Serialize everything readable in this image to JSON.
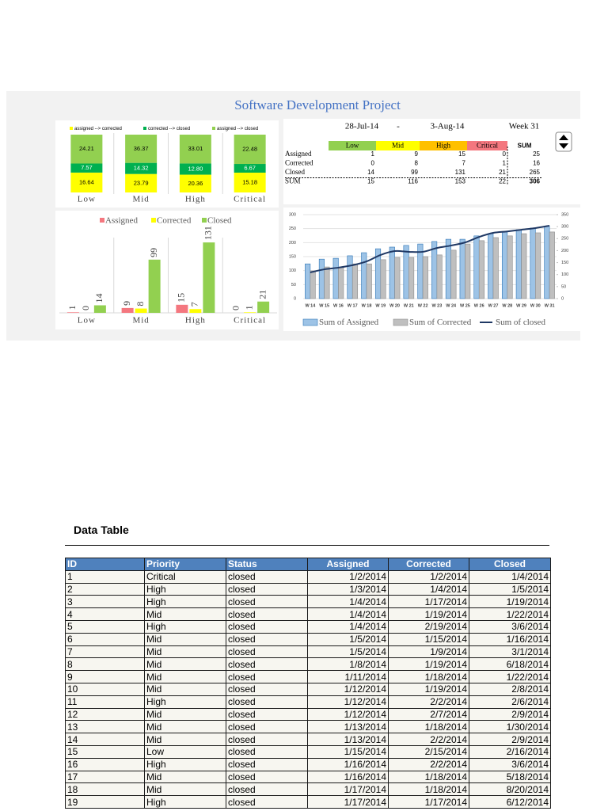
{
  "title": "Software Development Project",
  "chart_data": [
    {
      "type": "stacked_bar_100",
      "categories": [
        "Low",
        "Mid",
        "High",
        "Critical"
      ],
      "series": [
        {
          "name": "assigned --> corrected",
          "color": "#ffff00",
          "values": [
            16.64,
            23.79,
            20.36,
            15.18
          ]
        },
        {
          "name": "corrected --> closed",
          "color": "#00b050",
          "values": [
            7.57,
            14.32,
            12.8,
            6.67
          ],
          "value_labels": [
            "7.57",
            "14.32",
            "12.80",
            "6.67"
          ]
        },
        {
          "name": "assigned --> closed",
          "color": "#92d050",
          "values": [
            24.21,
            36.37,
            33.01,
            22.48
          ]
        }
      ]
    },
    {
      "type": "bar",
      "categories": [
        "Low",
        "Mid",
        "High",
        "Critical"
      ],
      "series": [
        {
          "name": "Assigned",
          "color": "#f4777f",
          "values": [
            1,
            9,
            15,
            0
          ]
        },
        {
          "name": "Corrected",
          "color": "#ffff00",
          "values": [
            0,
            8,
            7,
            1
          ]
        },
        {
          "name": "Closed",
          "color": "#92d050",
          "values": [
            14,
            99,
            131,
            21
          ]
        }
      ],
      "ylim": [
        0,
        140
      ]
    },
    {
      "type": "combo",
      "categories": [
        "W 14",
        "W 15",
        "W 16",
        "W 17",
        "W 18",
        "W 19",
        "W 20",
        "W 21",
        "W 22",
        "W 23",
        "W 24",
        "W 25",
        "W 26",
        "W 27",
        "W 28",
        "W 29",
        "W 30",
        "W 31"
      ],
      "series": [
        {
          "name": "Sum of Assigned",
          "type": "bar",
          "color": "#9dc3e6",
          "values": [
            124,
            141,
            144,
            153,
            164,
            178,
            184,
            190,
            195,
            204,
            212,
            212,
            224,
            232,
            240,
            246,
            252,
            258
          ]
        },
        {
          "name": "Sum of Corrected",
          "type": "bar",
          "color": "#bfbfbf",
          "values": [
            99,
            113,
            113,
            124,
            124,
            139,
            147,
            147,
            150,
            156,
            173,
            195,
            207,
            218,
            224,
            232,
            235,
            238
          ]
        },
        {
          "name": "Sum of closed",
          "type": "line",
          "axis": "y2",
          "color": "#1f3864",
          "values": [
            109,
            122,
            129,
            139,
            155,
            182,
            198,
            195,
            195,
            211,
            221,
            234,
            257,
            274,
            280,
            287,
            294,
            304
          ]
        }
      ],
      "ylim": [
        0,
        300
      ],
      "yticks": [
        0,
        50,
        100,
        150,
        200,
        250,
        300
      ],
      "y2lim": [
        0,
        350
      ],
      "y2ticks": [
        0,
        50,
        100,
        150,
        200,
        250,
        300,
        350
      ],
      "grid": true
    }
  ],
  "summary": {
    "date_from": "28-Jul-14",
    "separator": "-",
    "date_to": "3-Aug-14",
    "week": "Week 31",
    "columns": [
      "Low",
      "Mid",
      "High",
      "Critical",
      "SUM"
    ],
    "column_colors": [
      "#92d050",
      "#ffff00",
      "#ffc000",
      "#f4777f",
      "#ffffff"
    ],
    "rows": [
      {
        "label": "Assigned",
        "values": [
          1,
          9,
          15,
          0,
          25
        ]
      },
      {
        "label": "Corrected",
        "values": [
          0,
          8,
          7,
          1,
          16
        ]
      },
      {
        "label": "Closed",
        "values": [
          14,
          99,
          131,
          21,
          265
        ]
      },
      {
        "label": "SUM",
        "values": [
          15,
          116,
          153,
          22,
          306
        ]
      }
    ]
  },
  "data_table": {
    "title": "Data Table",
    "columns": [
      "ID",
      "Priority",
      "Status",
      "Assigned",
      "Corrected",
      "Closed"
    ],
    "rows": [
      [
        "1",
        "Critical",
        "closed",
        "1/2/2014",
        "1/2/2014",
        "1/4/2014"
      ],
      [
        "2",
        "High",
        "closed",
        "1/3/2014",
        "1/4/2014",
        "1/5/2014"
      ],
      [
        "3",
        "High",
        "closed",
        "1/4/2014",
        "1/17/2014",
        "1/19/2014"
      ],
      [
        "4",
        "Mid",
        "closed",
        "1/4/2014",
        "1/19/2014",
        "1/22/2014"
      ],
      [
        "5",
        "High",
        "closed",
        "1/4/2014",
        "2/19/2014",
        "3/6/2014"
      ],
      [
        "6",
        "Mid",
        "closed",
        "1/5/2014",
        "1/15/2014",
        "1/16/2014"
      ],
      [
        "7",
        "Mid",
        "closed",
        "1/5/2014",
        "1/9/2014",
        "3/1/2014"
      ],
      [
        "8",
        "Mid",
        "closed",
        "1/8/2014",
        "1/19/2014",
        "6/18/2014"
      ],
      [
        "9",
        "Mid",
        "closed",
        "1/11/2014",
        "1/18/2014",
        "1/22/2014"
      ],
      [
        "10",
        "Mid",
        "closed",
        "1/12/2014",
        "1/19/2014",
        "2/8/2014"
      ],
      [
        "11",
        "High",
        "closed",
        "1/12/2014",
        "2/2/2014",
        "2/6/2014"
      ],
      [
        "12",
        "Mid",
        "closed",
        "1/12/2014",
        "2/7/2014",
        "2/9/2014"
      ],
      [
        "13",
        "Mid",
        "closed",
        "1/13/2014",
        "1/18/2014",
        "1/30/2014"
      ],
      [
        "14",
        "Mid",
        "closed",
        "1/13/2014",
        "2/2/2014",
        "2/9/2014"
      ],
      [
        "15",
        "Low",
        "closed",
        "1/15/2014",
        "2/15/2014",
        "2/16/2014"
      ],
      [
        "16",
        "High",
        "closed",
        "1/16/2014",
        "2/2/2014",
        "3/6/2014"
      ],
      [
        "17",
        "Mid",
        "closed",
        "1/16/2014",
        "1/18/2014",
        "5/18/2014"
      ],
      [
        "18",
        "Mid",
        "closed",
        "1/17/2014",
        "1/18/2014",
        "8/20/2014"
      ],
      [
        "19",
        "High",
        "closed",
        "1/17/2014",
        "1/17/2014",
        "6/12/2014"
      ]
    ]
  }
}
